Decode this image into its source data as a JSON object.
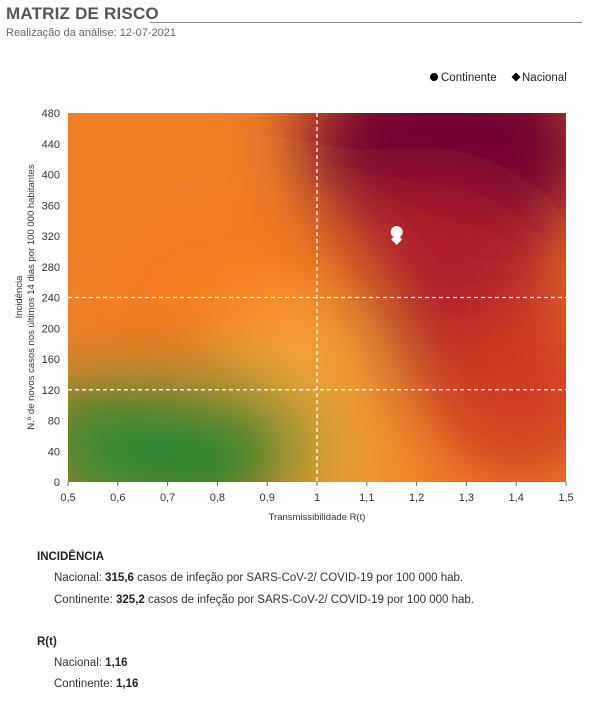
{
  "header": {
    "title": "MATRIZ DE RISCO",
    "subtitle": "Realização da análise: 12-07-2021"
  },
  "legend": {
    "continente": "Continente",
    "nacional": "Nacional"
  },
  "colors": {
    "green": "#2a8a35",
    "orange": "#f57d1f",
    "yellow": "#f6a535",
    "red": "#c92424",
    "darkred": "#6d0230",
    "gridline": "#ffffff",
    "marker": "#ffffff"
  },
  "chart_data": {
    "type": "scatter",
    "xlabel": "Transmissibilidade  R(t)",
    "ylabel_line1": "Incidência",
    "ylabel_line2": "N.º de novos  casos nos últimos 14  dias por 100 000  habitantes",
    "xlim": [
      0.5,
      1.5
    ],
    "ylim": [
      0,
      480
    ],
    "x_ticks": [
      "0,5",
      "0,6",
      "0,7",
      "0,8",
      "0,9",
      "1",
      "1,1",
      "1,2",
      "1,3",
      "1,4",
      "1,5"
    ],
    "y_ticks": [
      "0",
      "40",
      "80",
      "120",
      "160",
      "200",
      "240",
      "280",
      "320",
      "360",
      "400",
      "440",
      "480"
    ],
    "reference_lines": {
      "x": [
        1.0
      ],
      "y": [
        120,
        240
      ]
    },
    "series": [
      {
        "name": "Continente",
        "marker": "circle",
        "x": 1.16,
        "y": 325.2
      },
      {
        "name": "Nacional",
        "marker": "diamond",
        "x": 1.16,
        "y": 315.6
      }
    ]
  },
  "incidencia": {
    "heading": "INCIDÊNCIA",
    "nacional_label": "Nacional: ",
    "nacional_value": "315,6",
    "nacional_suffix": " casos de infeção por SARS-CoV-2/ COVID-19 por 100 000 hab.",
    "continente_label": "Continente: ",
    "continente_value": "325,2",
    "continente_suffix": " casos de infeção por SARS-CoV-2/ COVID-19 por 100 000 hab."
  },
  "rt": {
    "heading": "R(t)",
    "nacional_label": "Nacional: ",
    "nacional_value": "1,16",
    "continente_label": "Continente: ",
    "continente_value": "1,16"
  }
}
